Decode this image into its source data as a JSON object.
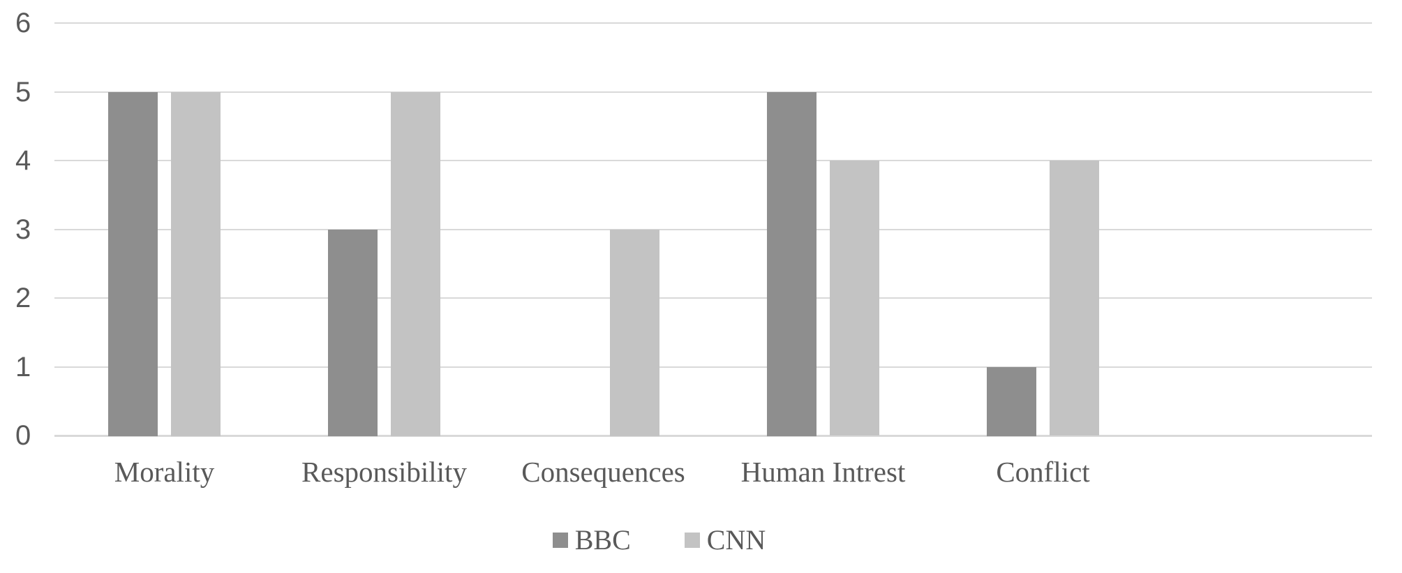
{
  "chart_data": {
    "type": "bar",
    "title": "",
    "xlabel": "",
    "ylabel": "",
    "categories": [
      "Morality",
      "Responsibility",
      "Consequences",
      "Human Intrest",
      "Conflict"
    ],
    "series": [
      {
        "name": "BBC",
        "values": [
          5,
          3,
          0,
          5,
          1
        ],
        "color": "#8e8e8e"
      },
      {
        "name": "CNN",
        "values": [
          5,
          5,
          3,
          4,
          4
        ],
        "color": "#c3c3c3"
      }
    ],
    "ylim": [
      0,
      6
    ],
    "y_ticks": [
      0,
      1,
      2,
      3,
      4,
      5,
      6
    ],
    "grid": true,
    "gridline_color": "#d9d9d9",
    "text_color": "#595959",
    "background": "#ffffff",
    "legend_position": "bottom",
    "trailing_empty_slots": 1
  }
}
